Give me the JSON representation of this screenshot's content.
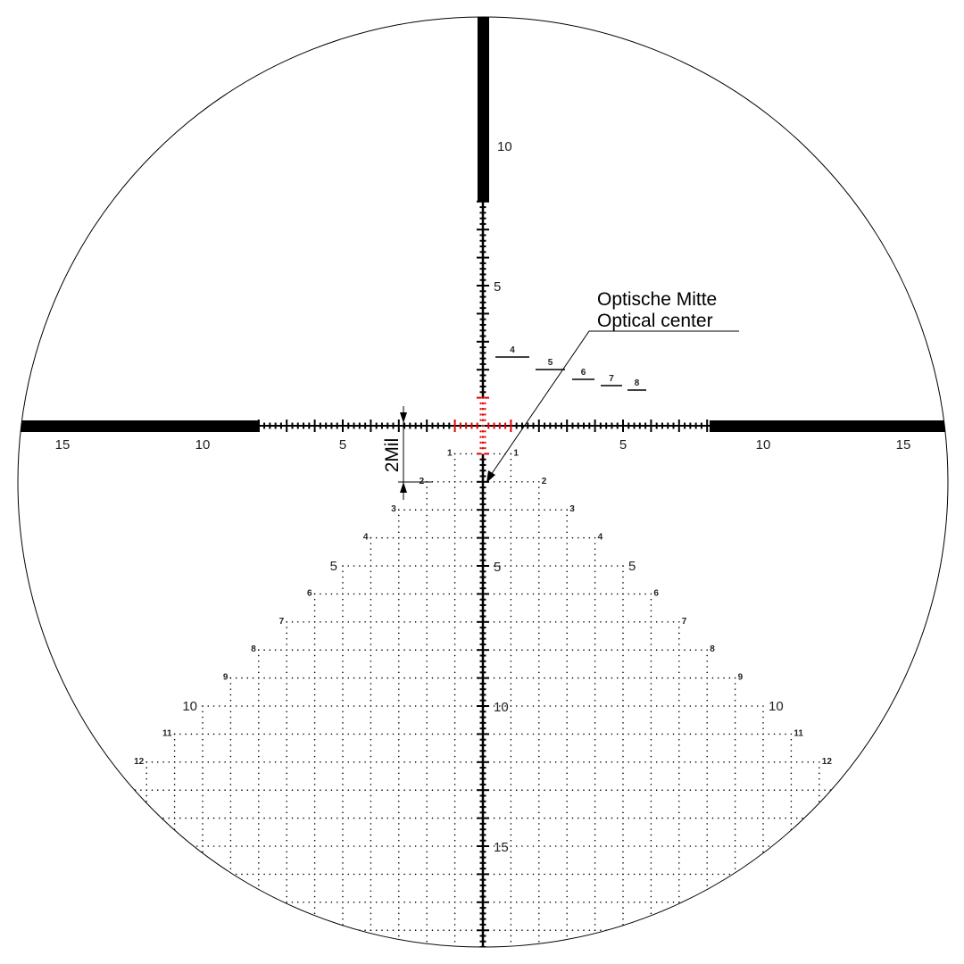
{
  "diagram": {
    "units": "Mil",
    "horizontal_scale_labels": {
      "left": [
        "15",
        "10",
        "5"
      ],
      "right": [
        "5",
        "10",
        "15"
      ]
    },
    "vertical_scale_labels": {
      "top": [
        "10",
        "5"
      ],
      "bottom": [
        "5",
        "10",
        "15"
      ]
    },
    "tree_row_labels": [
      "1",
      "2",
      "3",
      "4",
      "5",
      "6",
      "7",
      "8",
      "9",
      "10",
      "11",
      "12"
    ],
    "holdover_labels": [
      "4",
      "5",
      "6",
      "7",
      "8"
    ],
    "dimension_label": "2Mil",
    "callout": {
      "line1": "Optische Mitte",
      "line2": "Optical center"
    },
    "colors": {
      "reticle": "#000000",
      "center_illuminated": "#e00000",
      "background": "#ffffff"
    }
  }
}
